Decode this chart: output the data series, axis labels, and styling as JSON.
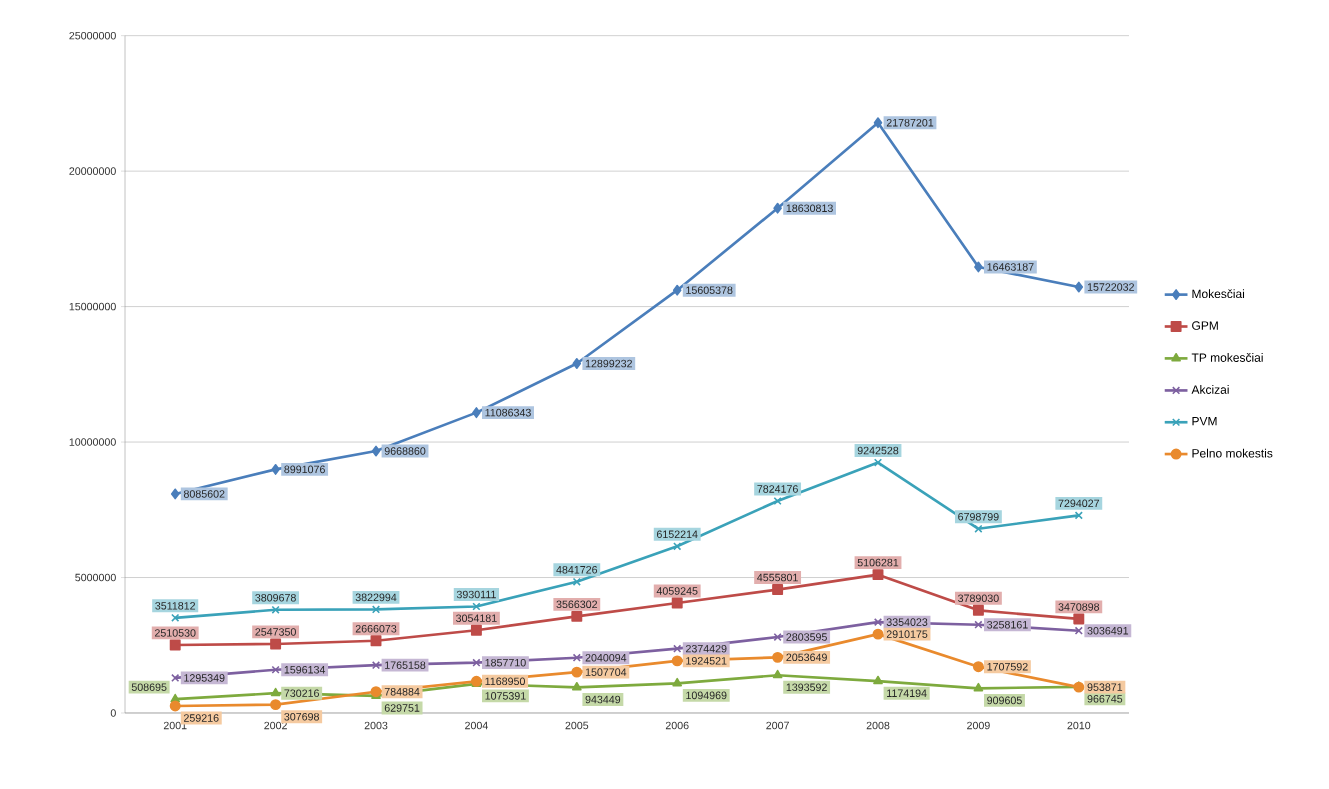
{
  "chart_data": {
    "type": "line",
    "categories": [
      "2001",
      "2002",
      "2003",
      "2004",
      "2005",
      "2006",
      "2007",
      "2008",
      "2009",
      "2010"
    ],
    "series": [
      {
        "name": "Mokesčiai",
        "color": "#4a7ebb",
        "marker": "diamond",
        "values": [
          8085602,
          8991076,
          9668860,
          11086343,
          12899232,
          15605378,
          18630813,
          21787201,
          16463187,
          15722032
        ]
      },
      {
        "name": "GPM",
        "color": "#be4b48",
        "marker": "square",
        "values": [
          2510530,
          2547350,
          2666073,
          3054181,
          3566302,
          4059245,
          4555801,
          5106281,
          3789030,
          3470898
        ]
      },
      {
        "name": "TP mokesčiai",
        "color": "#7eaa3e",
        "marker": "triangle",
        "values": [
          508695,
          730216,
          629751,
          1075391,
          943449,
          1094969,
          1393592,
          1174194,
          909605,
          966745
        ]
      },
      {
        "name": "Akcizai",
        "color": "#7d60a0",
        "marker": "cross",
        "values": [
          1295349,
          1596134,
          1765158,
          1857710,
          2040094,
          2374429,
          2803595,
          3354023,
          3258161,
          3036491
        ]
      },
      {
        "name": "PVM",
        "color": "#3aa2b9",
        "marker": "cross",
        "values": [
          3511812,
          3809678,
          3822994,
          3930111,
          4841726,
          6152214,
          7824176,
          9242528,
          6798799,
          7294027
        ]
      },
      {
        "name": "Pelno mokestis",
        "color": "#e98a2d",
        "marker": "circle",
        "values": [
          259216,
          307698,
          784884,
          1168950,
          1507704,
          1924521,
          2053649,
          2910175,
          1707592,
          953871
        ]
      }
    ],
    "ylim": [
      0,
      25000000
    ],
    "yticks": [
      0,
      5000000,
      10000000,
      15000000,
      20000000,
      25000000
    ],
    "grid": "y",
    "legend": "right",
    "data_labels": true
  }
}
